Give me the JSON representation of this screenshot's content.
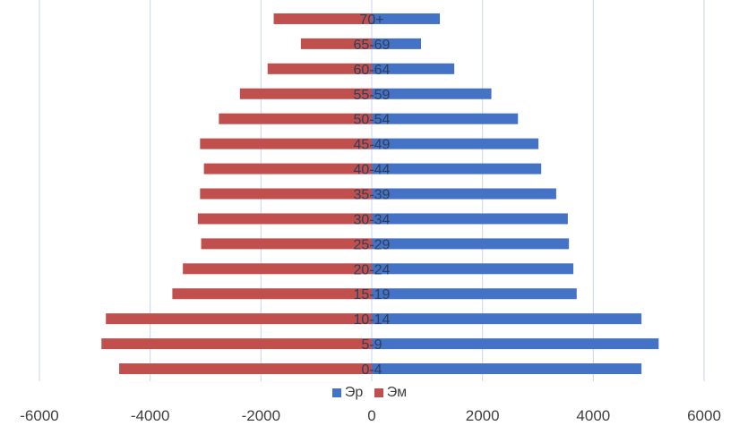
{
  "chart_data": {
    "type": "bar",
    "orientation": "horizontal",
    "subtype": "population-pyramid",
    "categories": [
      "0-4",
      "5-9",
      "10-14",
      "15-19",
      "20-24",
      "25-29",
      "30-34",
      "35-39",
      "40-44",
      "45-49",
      "50-54",
      "55-59",
      "60-64",
      "65-69",
      "70+"
    ],
    "series": [
      {
        "name": "Эр",
        "color": "#4472C4",
        "values": [
          4870,
          5180,
          4870,
          3700,
          3640,
          3560,
          3540,
          3330,
          3060,
          3010,
          2640,
          2160,
          1490,
          890,
          1230
        ]
      },
      {
        "name": "Эм",
        "color": "#C0504D",
        "values": [
          -4560,
          -4880,
          -4800,
          -3600,
          -3410,
          -3080,
          -3140,
          -3100,
          -3030,
          -3100,
          -2760,
          -2380,
          -1880,
          -1280,
          -1770
        ]
      }
    ],
    "xlim": [
      -6000,
      6000
    ],
    "x_ticks": [
      "-6000",
      "-4000",
      "-2000",
      "0",
      "2000",
      "4000",
      "6000"
    ],
    "grid": true,
    "legend_position": "bottom"
  }
}
